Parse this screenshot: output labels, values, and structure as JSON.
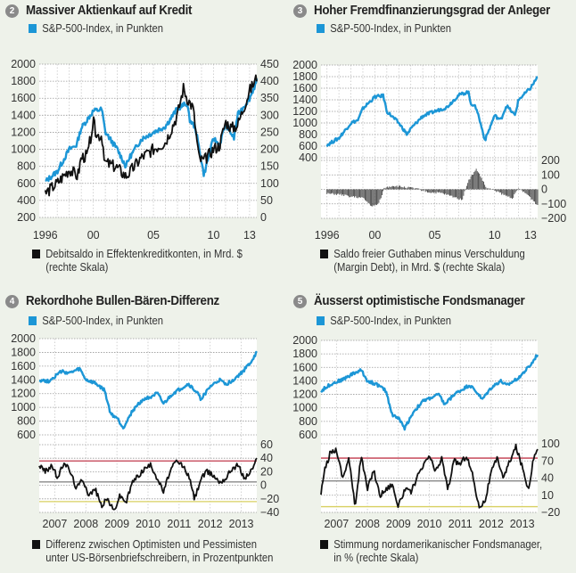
{
  "colors": {
    "sp500": "#1c96d6",
    "indicator": "#111111",
    "upper_band": "#c0394b",
    "lower_band": "#d8d060",
    "mid_line": "#888888",
    "background": "#eef2ea"
  },
  "chart_data": [
    {
      "id": "2",
      "type": "line",
      "title": "Massiver Aktienkauf auf Kredit",
      "legend_top": "S&P-500-Index, in Punkten",
      "legend_bottom": "Debitsaldo in Effektenkreditkonten, in Mrd. $",
      "legend_bottom_2": "(rechte Skala)",
      "x_ticks": [
        "1996",
        "00",
        "05",
        "10",
        "13"
      ],
      "x_tick_years": [
        1996,
        2000,
        2005,
        2010,
        2013
      ],
      "xlim": [
        1995.5,
        2013.6
      ],
      "y_left_ticks": [
        "2000",
        "1800",
        "1600",
        "1400",
        "1200",
        "1000",
        "800",
        "600",
        "400",
        "200"
      ],
      "ylim_left": [
        200,
        2000
      ],
      "y_right_ticks": [
        "450",
        "400",
        "350",
        "300",
        "250",
        "200",
        "150",
        "100",
        "50",
        "0"
      ],
      "ylim_right": [
        0,
        450
      ],
      "series": [
        {
          "name": "S&P-500-Index",
          "axis": "left",
          "x": [
            1996,
            1997,
            1998,
            1998.6,
            1999,
            2000,
            2000.7,
            2001,
            2002,
            2002.7,
            2003,
            2004,
            2005,
            2006,
            2007,
            2007.8,
            2008,
            2008.5,
            2009.2,
            2010,
            2010.5,
            2011,
            2011.7,
            2012,
            2013,
            2013.6
          ],
          "values": [
            620,
            740,
            1000,
            1050,
            1250,
            1450,
            1470,
            1200,
            1000,
            800,
            900,
            1120,
            1200,
            1270,
            1480,
            1540,
            1350,
            1250,
            700,
            1130,
            1050,
            1300,
            1130,
            1400,
            1600,
            1800
          ]
        },
        {
          "name": "Debitsaldo",
          "axis": "right",
          "x": [
            1996,
            1997,
            1998,
            1998.7,
            1999,
            1999.5,
            2000,
            2000.3,
            2000.7,
            2001,
            2002,
            2002.7,
            2003,
            2004,
            2005,
            2006,
            2007,
            2007.5,
            2007.8,
            2008.3,
            2008.8,
            2009.2,
            2010,
            2010.5,
            2011,
            2011.5,
            2012,
            2013,
            2013.6
          ],
          "values": [
            70,
            100,
            140,
            120,
            175,
            180,
            280,
            240,
            240,
            160,
            145,
            120,
            130,
            175,
            200,
            220,
            300,
            380,
            350,
            320,
            170,
            165,
            200,
            210,
            280,
            260,
            270,
            370,
            410
          ]
        }
      ]
    },
    {
      "id": "3",
      "type": "line+bar",
      "title": "Hoher Fremdfinanzierungsgrad der Anleger",
      "legend_top": "S&P-500-Index, in Punkten",
      "legend_bottom": "Saldo freier Guthaben minus Verschuldung",
      "legend_bottom_2": "(Margin Debt), in Mrd. $ (rechte Skala)",
      "x_ticks": [
        "1996",
        "00",
        "05",
        "10",
        "13"
      ],
      "x_tick_years": [
        1996,
        2000,
        2005,
        2010,
        2013
      ],
      "xlim": [
        1995.5,
        2013.6
      ],
      "y_left_ticks": [
        "2000",
        "1800",
        "1600",
        "1400",
        "1200",
        "1000",
        "800",
        "600",
        "400"
      ],
      "ylim_left": [
        400,
        2000
      ],
      "y_right_ticks": [
        "200",
        "100",
        "0",
        "−100",
        "−200"
      ],
      "ylim_right": [
        -200,
        200
      ],
      "series": [
        {
          "name": "S&P-500-Index",
          "axis": "left",
          "x": [
            1996,
            1997,
            1998,
            1998.6,
            1999,
            2000,
            2000.7,
            2001,
            2002,
            2002.7,
            2003,
            2004,
            2005,
            2006,
            2007,
            2007.8,
            2008,
            2008.5,
            2009.2,
            2010,
            2010.5,
            2011,
            2011.7,
            2012,
            2013,
            2013.6
          ],
          "values": [
            620,
            740,
            1000,
            1050,
            1250,
            1450,
            1470,
            1200,
            1000,
            800,
            900,
            1120,
            1200,
            1270,
            1480,
            1540,
            1350,
            1250,
            700,
            1130,
            1050,
            1300,
            1130,
            1400,
            1600,
            1800
          ]
        },
        {
          "name": "Saldo Margin Debt",
          "axis": "right",
          "type": "bar",
          "x": [
            1996,
            1997,
            1998,
            1999,
            1999.8,
            2000.3,
            2000.8,
            2001.5,
            2002.5,
            2003.5,
            2004.5,
            2005.5,
            2006.5,
            2007.3,
            2007.8,
            2008.5,
            2008.9,
            2009.3,
            2010,
            2010.8,
            2011.5,
            2012,
            2012.8,
            2013.6
          ],
          "values": [
            -30,
            -35,
            -50,
            -60,
            -120,
            -100,
            10,
            25,
            15,
            5,
            -20,
            -25,
            -50,
            -70,
            60,
            140,
            80,
            10,
            -5,
            -40,
            -60,
            5,
            -40,
            -110
          ]
        }
      ]
    },
    {
      "id": "4",
      "type": "line",
      "title": "Rekordhohe Bullen-Bären-Differenz",
      "legend_top": "S&P-500-Index, in Punkten",
      "legend_bottom": "Differenz zwischen Optimisten und Pessimisten",
      "legend_bottom_2": "unter US-Börsenbriefschreibern, in Prozentpunkten",
      "x_ticks": [
        "2007",
        "2008",
        "2009",
        "2010",
        "2011",
        "2012",
        "2013"
      ],
      "x_tick_years": [
        2007,
        2008,
        2009,
        2010,
        2011,
        2012,
        2013
      ],
      "xlim": [
        2006.5,
        2013.5
      ],
      "y_left_ticks": [
        "2000",
        "1800",
        "1600",
        "1400",
        "1200",
        "1000",
        "800",
        "600"
      ],
      "ylim_left": [
        600,
        2000
      ],
      "y_right_ticks": [
        "60",
        "40",
        "20",
        "0",
        "−20",
        "−40"
      ],
      "ylim_right": [
        -40,
        60
      ],
      "reference_lines": [
        {
          "value": 36,
          "color": "upper_band"
        },
        {
          "value": 5,
          "color": "mid_line"
        },
        {
          "value": -24,
          "color": "lower_band"
        }
      ],
      "series": [
        {
          "name": "S&P-500-Index",
          "axis": "left",
          "x": [
            2006.5,
            2006.8,
            2007.2,
            2007.5,
            2007.8,
            2008.0,
            2008.3,
            2008.6,
            2008.8,
            2009.0,
            2009.2,
            2009.5,
            2009.8,
            2010.3,
            2010.5,
            2010.8,
            2011.3,
            2011.6,
            2011.7,
            2012.0,
            2012.3,
            2012.5,
            2012.8,
            2013.0,
            2013.3,
            2013.5
          ],
          "values": [
            1400,
            1380,
            1520,
            1500,
            1560,
            1400,
            1350,
            1250,
            900,
            850,
            700,
            950,
            1100,
            1200,
            1050,
            1200,
            1340,
            1200,
            1120,
            1300,
            1400,
            1330,
            1420,
            1500,
            1650,
            1800
          ]
        },
        {
          "name": "Bullen-Bären-Differenz",
          "axis": "right",
          "x": [
            2006.5,
            2006.7,
            2006.9,
            2007.1,
            2007.3,
            2007.5,
            2007.7,
            2007.9,
            2008.1,
            2008.3,
            2008.5,
            2008.7,
            2008.9,
            2009.1,
            2009.3,
            2009.5,
            2009.7,
            2009.9,
            2010.1,
            2010.3,
            2010.5,
            2010.7,
            2010.9,
            2011.1,
            2011.3,
            2011.5,
            2011.7,
            2011.9,
            2012.1,
            2012.3,
            2012.5,
            2012.7,
            2012.9,
            2013.1,
            2013.3,
            2013.5
          ],
          "values": [
            30,
            20,
            30,
            10,
            35,
            20,
            -5,
            10,
            -15,
            -5,
            -30,
            -20,
            -38,
            -15,
            -25,
            5,
            15,
            25,
            30,
            10,
            -10,
            20,
            35,
            30,
            15,
            -20,
            10,
            20,
            15,
            5,
            10,
            25,
            30,
            10,
            20,
            38
          ]
        }
      ]
    },
    {
      "id": "5",
      "type": "line",
      "title": "Äusserst optimistische Fondsmanager",
      "legend_top": "S&P-500-Index, in Punkten",
      "legend_bottom": "Stimmung nordamerikanischer Fondsmanager,",
      "legend_bottom_2": "in % (rechte Skala)",
      "x_ticks": [
        "2007",
        "2008",
        "2009",
        "2010",
        "2011",
        "2012",
        "2013"
      ],
      "x_tick_years": [
        2007,
        2008,
        2009,
        2010,
        2011,
        2012,
        2013
      ],
      "xlim": [
        2006.5,
        2013.5
      ],
      "y_left_ticks": [
        "2000",
        "1800",
        "1600",
        "1400",
        "1200",
        "1000",
        "800",
        "600"
      ],
      "ylim_left": [
        600,
        2000
      ],
      "y_right_ticks": [
        "100",
        "70",
        "40",
        "10",
        "−20"
      ],
      "ylim_right": [
        -20,
        100
      ],
      "reference_lines": [
        {
          "value": 75,
          "color": "upper_band"
        },
        {
          "value": 35,
          "color": "mid_line"
        },
        {
          "value": -10,
          "color": "lower_band"
        }
      ],
      "series": [
        {
          "name": "S&P-500-Index",
          "axis": "left",
          "x": [
            2006.5,
            2006.8,
            2007.2,
            2007.5,
            2007.8,
            2008.0,
            2008.3,
            2008.6,
            2008.8,
            2009.0,
            2009.2,
            2009.5,
            2009.8,
            2010.3,
            2010.5,
            2010.8,
            2011.3,
            2011.6,
            2011.7,
            2012.0,
            2012.3,
            2012.5,
            2012.8,
            2013.0,
            2013.3,
            2013.5
          ],
          "values": [
            1250,
            1350,
            1420,
            1500,
            1560,
            1400,
            1350,
            1250,
            900,
            850,
            700,
            950,
            1100,
            1200,
            1050,
            1200,
            1340,
            1200,
            1120,
            1300,
            1400,
            1330,
            1420,
            1500,
            1650,
            1800
          ]
        },
        {
          "name": "Stimmung Fondsmanager",
          "axis": "right",
          "x": [
            2006.5,
            2006.6,
            2006.8,
            2007.0,
            2007.2,
            2007.4,
            2007.6,
            2007.8,
            2008.0,
            2008.2,
            2008.4,
            2008.6,
            2008.8,
            2009.0,
            2009.2,
            2009.4,
            2009.6,
            2009.8,
            2010.0,
            2010.2,
            2010.4,
            2010.6,
            2010.8,
            2011.0,
            2011.2,
            2011.4,
            2011.6,
            2011.8,
            2012.0,
            2012.2,
            2012.4,
            2012.6,
            2012.8,
            2013.0,
            2013.2,
            2013.4,
            2013.5
          ],
          "values": [
            10,
            50,
            85,
            90,
            40,
            75,
            -10,
            80,
            20,
            55,
            10,
            20,
            30,
            -10,
            20,
            15,
            40,
            60,
            80,
            50,
            75,
            20,
            70,
            65,
            80,
            45,
            -10,
            0,
            50,
            75,
            40,
            70,
            95,
            60,
            20,
            85,
            90
          ]
        }
      ]
    }
  ]
}
